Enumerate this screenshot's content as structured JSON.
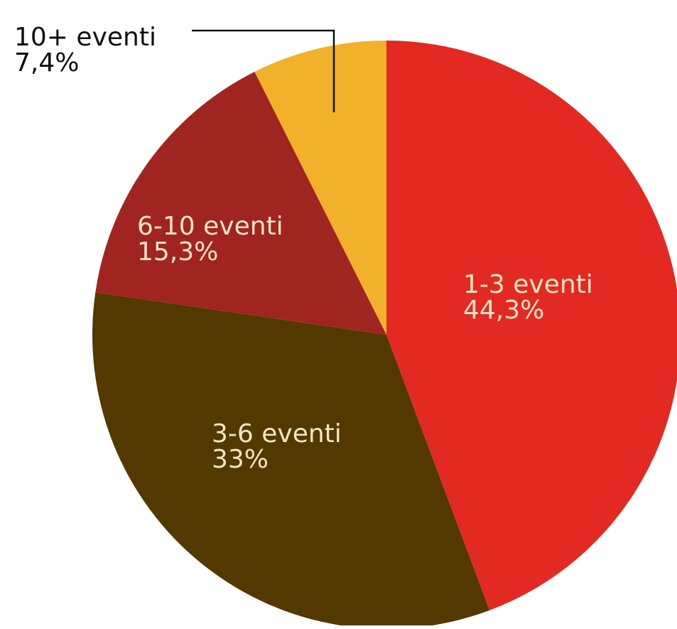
{
  "chart_data": {
    "type": "pie",
    "start_angle": "12 o'clock",
    "direction": "clockwise",
    "slices": [
      {
        "label": "1-3 eventi",
        "value_text": "44,3%",
        "value": 44.3,
        "color": "#E32A22",
        "label_color": "#F3E4C8"
      },
      {
        "label": "3-6 eventi",
        "value_text": "33%",
        "value": 33.0,
        "color": "#533900",
        "label_color": "#F3E4C8"
      },
      {
        "label": "6-10 eventi",
        "value_text": "15,3%",
        "value": 15.3,
        "color": "#A02420",
        "label_color": "#F3E4C8"
      },
      {
        "label": "10+ eventi",
        "value_text": "7,4%",
        "value": 7.4,
        "color": "#F2B12A",
        "label_color": "#111111",
        "label_outside": true
      }
    ]
  }
}
